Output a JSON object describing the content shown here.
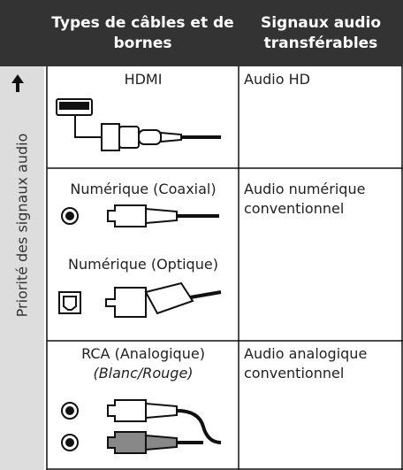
{
  "header": {
    "columns": [
      "Types de câbles et de bornes",
      "Signaux audio transférables"
    ]
  },
  "side_label": "Priorité des signaux audio",
  "rows": [
    {
      "cables": [
        "HDMI"
      ],
      "signal": "Audio HD"
    },
    {
      "cables": [
        "Numérique (Coaxial)",
        "Numérique (Optique)"
      ],
      "signal": "Audio numérique conventionnel"
    },
    {
      "cables": [
        "RCA (Analogique)"
      ],
      "note": "(Blanc/Rouge)",
      "signal": "Audio analogique conventionnel"
    }
  ]
}
